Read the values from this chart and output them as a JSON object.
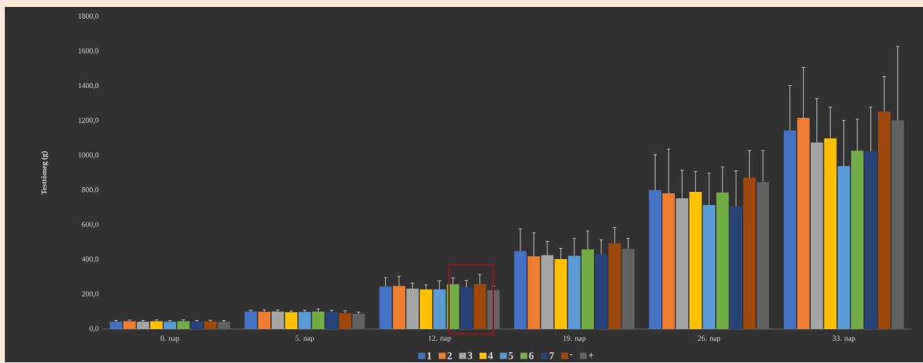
{
  "chart_data": {
    "type": "bar",
    "ylabel": "Testtömeg (g)",
    "categories": [
      "0. nap",
      "5. nap",
      "12. nap",
      "19. nap",
      "26. nap",
      "33. nap"
    ],
    "ylim": [
      0,
      1800
    ],
    "yticks": [
      {
        "value": 0,
        "label": "0,0"
      },
      {
        "value": 200,
        "label": "200,0"
      },
      {
        "value": 400,
        "label": "400,0"
      },
      {
        "value": 600,
        "label": "600,0"
      },
      {
        "value": 800,
        "label": "800,0"
      },
      {
        "value": 1000,
        "label": "1000,0"
      },
      {
        "value": 1200,
        "label": "1200,0"
      },
      {
        "value": 1400,
        "label": "1400,0"
      },
      {
        "value": 1600,
        "label": "1600,0"
      },
      {
        "value": 1800,
        "label": "1800,0"
      }
    ],
    "grid": false,
    "legend": "bottom",
    "series": [
      {
        "name": "1",
        "color": "#4472c4",
        "values": [
          42,
          101,
          245,
          449,
          801,
          1144
        ],
        "errors": [
          7,
          7,
          51,
          128,
          203,
          259
        ]
      },
      {
        "name": "2",
        "color": "#ed7d31",
        "values": [
          45,
          100,
          248,
          419,
          782,
          1217
        ],
        "errors": [
          7,
          11,
          56,
          135,
          255,
          290
        ]
      },
      {
        "name": "3",
        "color": "#a5a5a5",
        "values": [
          42,
          101,
          232,
          426,
          753,
          1075
        ],
        "errors": [
          7,
          9,
          33,
          79,
          162,
          252
        ]
      },
      {
        "name": "4",
        "color": "#ffc000",
        "values": [
          45,
          97,
          228,
          403,
          790,
          1099
        ],
        "errors": [
          8,
          7,
          26,
          62,
          118,
          179
        ]
      },
      {
        "name": "5",
        "color": "#5b9bd5",
        "values": [
          42,
          99,
          228,
          422,
          714,
          939
        ],
        "errors": [
          7,
          9,
          50,
          100,
          184,
          263
        ]
      },
      {
        "name": "6",
        "color": "#70ad47",
        "values": [
          45,
          101,
          258,
          459,
          786,
          1028
        ],
        "errors": [
          8,
          14,
          37,
          106,
          148,
          181
        ]
      },
      {
        "name": "7",
        "color": "#264478",
        "values": [
          42,
          99,
          241,
          432,
          706,
          1025
        ],
        "errors": [
          7,
          9,
          40,
          82,
          206,
          253
        ]
      },
      {
        "name": "-",
        "color": "#9e480e",
        "values": [
          44,
          91,
          258,
          494,
          872,
          1253
        ],
        "errors": [
          7,
          14,
          56,
          91,
          156,
          201
        ]
      },
      {
        "name": "+",
        "color": "#636363",
        "values": [
          42,
          88,
          225,
          461,
          846,
          1202
        ],
        "errors": [
          7,
          10,
          22,
          61,
          182,
          426
        ]
      }
    ]
  }
}
